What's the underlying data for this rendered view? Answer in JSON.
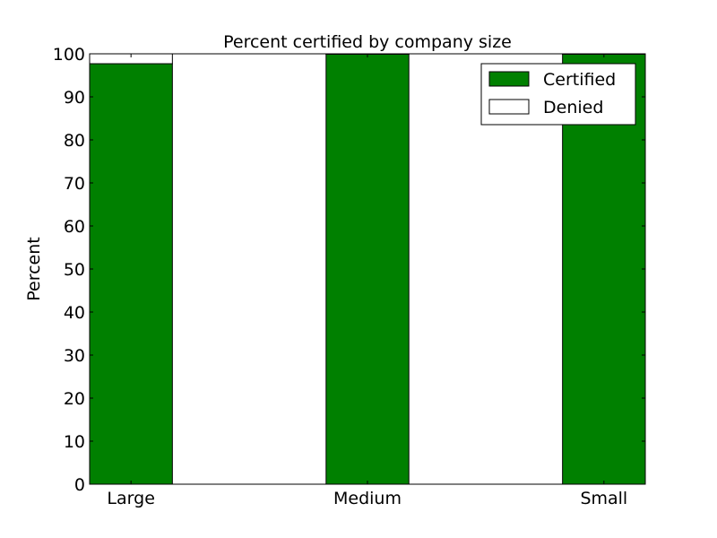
{
  "chart_data": {
    "type": "bar",
    "stacked": true,
    "title": "Percent certified by company size",
    "xlabel": "",
    "ylabel": "Percent",
    "ylim": [
      0,
      100
    ],
    "yticks": [
      0,
      10,
      20,
      30,
      40,
      50,
      60,
      70,
      80,
      90,
      100
    ],
    "categories": [
      "Large",
      "Medium",
      "Small"
    ],
    "series": [
      {
        "name": "Certified",
        "color": "#008000",
        "values": [
          97.7,
          99.9,
          99.9
        ]
      },
      {
        "name": "Denied",
        "color": "#ffffff",
        "values": [
          2.3,
          0.1,
          0.1
        ]
      }
    ],
    "legend_position": "top-right",
    "grid": false
  }
}
